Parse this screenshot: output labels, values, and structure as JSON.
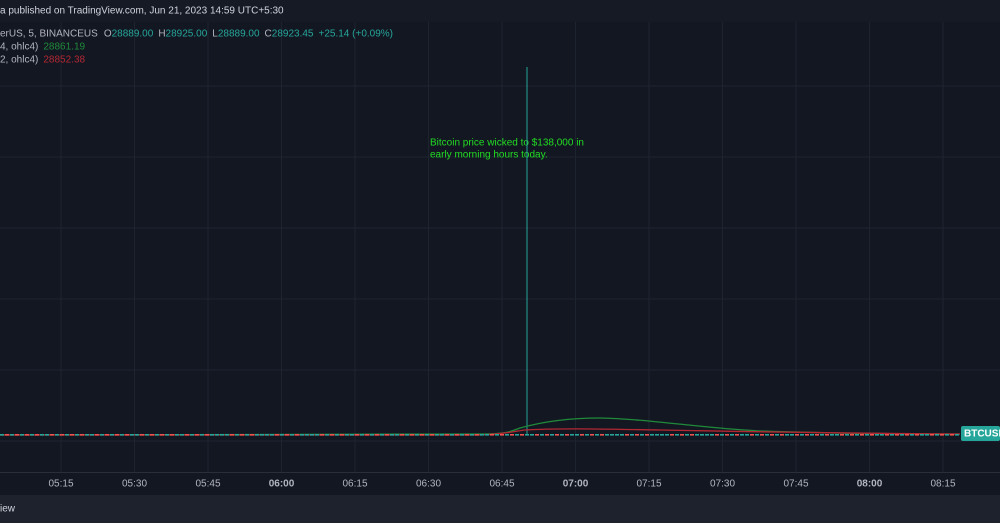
{
  "header": {
    "title": "a published on TradingView.com, Jun 21, 2023 14:59 UTC+5:30"
  },
  "legend": {
    "symbol": "erUS, 5, BINANCEUS",
    "ohlc": [
      {
        "key": "O",
        "value": "28889.00"
      },
      {
        "key": "H",
        "value": "28925.00"
      },
      {
        "key": "L",
        "value": "28889.00"
      },
      {
        "key": "C",
        "value": "28923.45"
      }
    ],
    "change": "+25.14 (+0.09%)",
    "indicators": [
      {
        "name": "4, ohlc4)",
        "value": "28861.19"
      },
      {
        "name": "2, ohlc4)",
        "value": "28852.38"
      }
    ]
  },
  "annotation": {
    "lines": [
      "Bitcoin price wicked to $138,000 in",
      "early morning hours today."
    ]
  },
  "time_axis": {
    "labels": [
      "05:15",
      "05:30",
      "05:45",
      "06:00",
      "06:15",
      "06:30",
      "06:45",
      "07:00",
      "07:15",
      "07:30",
      "07:45",
      "08:00",
      "08:15"
    ]
  },
  "price_tag": "BTCUSD",
  "footer": {
    "text": "iew"
  }
}
